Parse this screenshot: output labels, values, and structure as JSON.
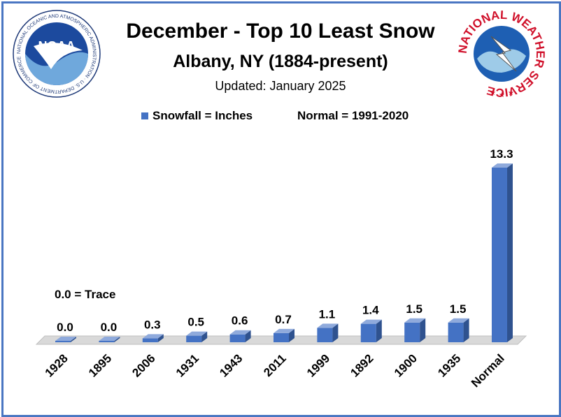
{
  "header": {
    "title": "December - Top 10 Least Snow",
    "subtitle": "Albany, NY (1884-present)",
    "updated": "Updated: January 2025"
  },
  "legend": {
    "series_label": "Snowfall = Inches",
    "normal_label": "Normal = 1991-2020"
  },
  "note": "0.0 = Trace",
  "logos": {
    "noaa_text": "NOAA",
    "noaa_ring_text": "NATIONAL OCEANIC AND ATMOSPHERIC ADMINISTRATION · U.S. DEPARTMENT OF COMMERCE",
    "nws_ring_text": "NATIONAL WEATHER SERVICE"
  },
  "colors": {
    "bar_front": "#4472c4",
    "bar_side": "#2f528f",
    "bar_top": "#8faadc",
    "border": "#4a76c2",
    "floor": "#d9d9d9"
  },
  "chart_data": {
    "type": "bar",
    "categories": [
      "1928",
      "1895",
      "2006",
      "1931",
      "1943",
      "2011",
      "1999",
      "1892",
      "1900",
      "1935",
      "Normal"
    ],
    "series": [
      {
        "name": "Snowfall = Inches",
        "values": [
          0.0,
          0.0,
          0.3,
          0.5,
          0.6,
          0.7,
          1.1,
          1.4,
          1.5,
          1.5,
          13.3
        ]
      }
    ],
    "data_labels": [
      "0.0",
      "0.0",
      "0.3",
      "0.5",
      "0.6",
      "0.7",
      "1.1",
      "1.4",
      "1.5",
      "1.5",
      "13.3"
    ],
    "ylim": [
      0,
      13.3
    ],
    "grid": false,
    "legend_position": "top",
    "xlabel": "",
    "ylabel": ""
  }
}
